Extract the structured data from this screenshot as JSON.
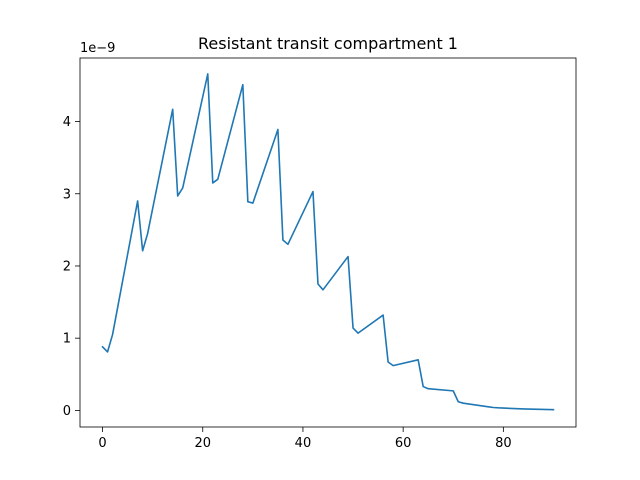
{
  "chart_data": {
    "type": "line",
    "title": "Resistant transit compartment 1",
    "xlabel": "",
    "ylabel": "",
    "y_offset_label": "1e−9",
    "xlim": [
      -4.5,
      94.5
    ],
    "ylim": [
      -0.23,
      4.88
    ],
    "x_ticks": [
      0,
      20,
      40,
      60,
      80
    ],
    "y_ticks": [
      0,
      1,
      2,
      3,
      4
    ],
    "grid": false,
    "series": [
      {
        "color": "#1f77b4",
        "x": [
          0,
          1,
          2,
          7,
          8,
          9,
          14,
          15,
          16,
          21,
          22,
          23,
          28,
          29,
          30,
          35,
          36,
          37,
          42,
          43,
          44,
          49,
          50,
          51,
          56,
          57,
          58,
          63,
          64,
          65,
          70,
          71,
          72,
          77,
          78,
          79,
          84,
          85,
          90
        ],
        "y": [
          0.88,
          0.81,
          1.05,
          2.9,
          2.21,
          2.45,
          4.17,
          2.97,
          3.08,
          4.66,
          3.15,
          3.2,
          4.51,
          2.89,
          2.87,
          3.89,
          2.36,
          2.3,
          3.03,
          1.75,
          1.67,
          2.13,
          1.14,
          1.07,
          1.32,
          0.67,
          0.62,
          0.7,
          0.33,
          0.3,
          0.27,
          0.12,
          0.1,
          0.05,
          0.04,
          0.035,
          0.02,
          0.018,
          0.01
        ]
      }
    ]
  }
}
